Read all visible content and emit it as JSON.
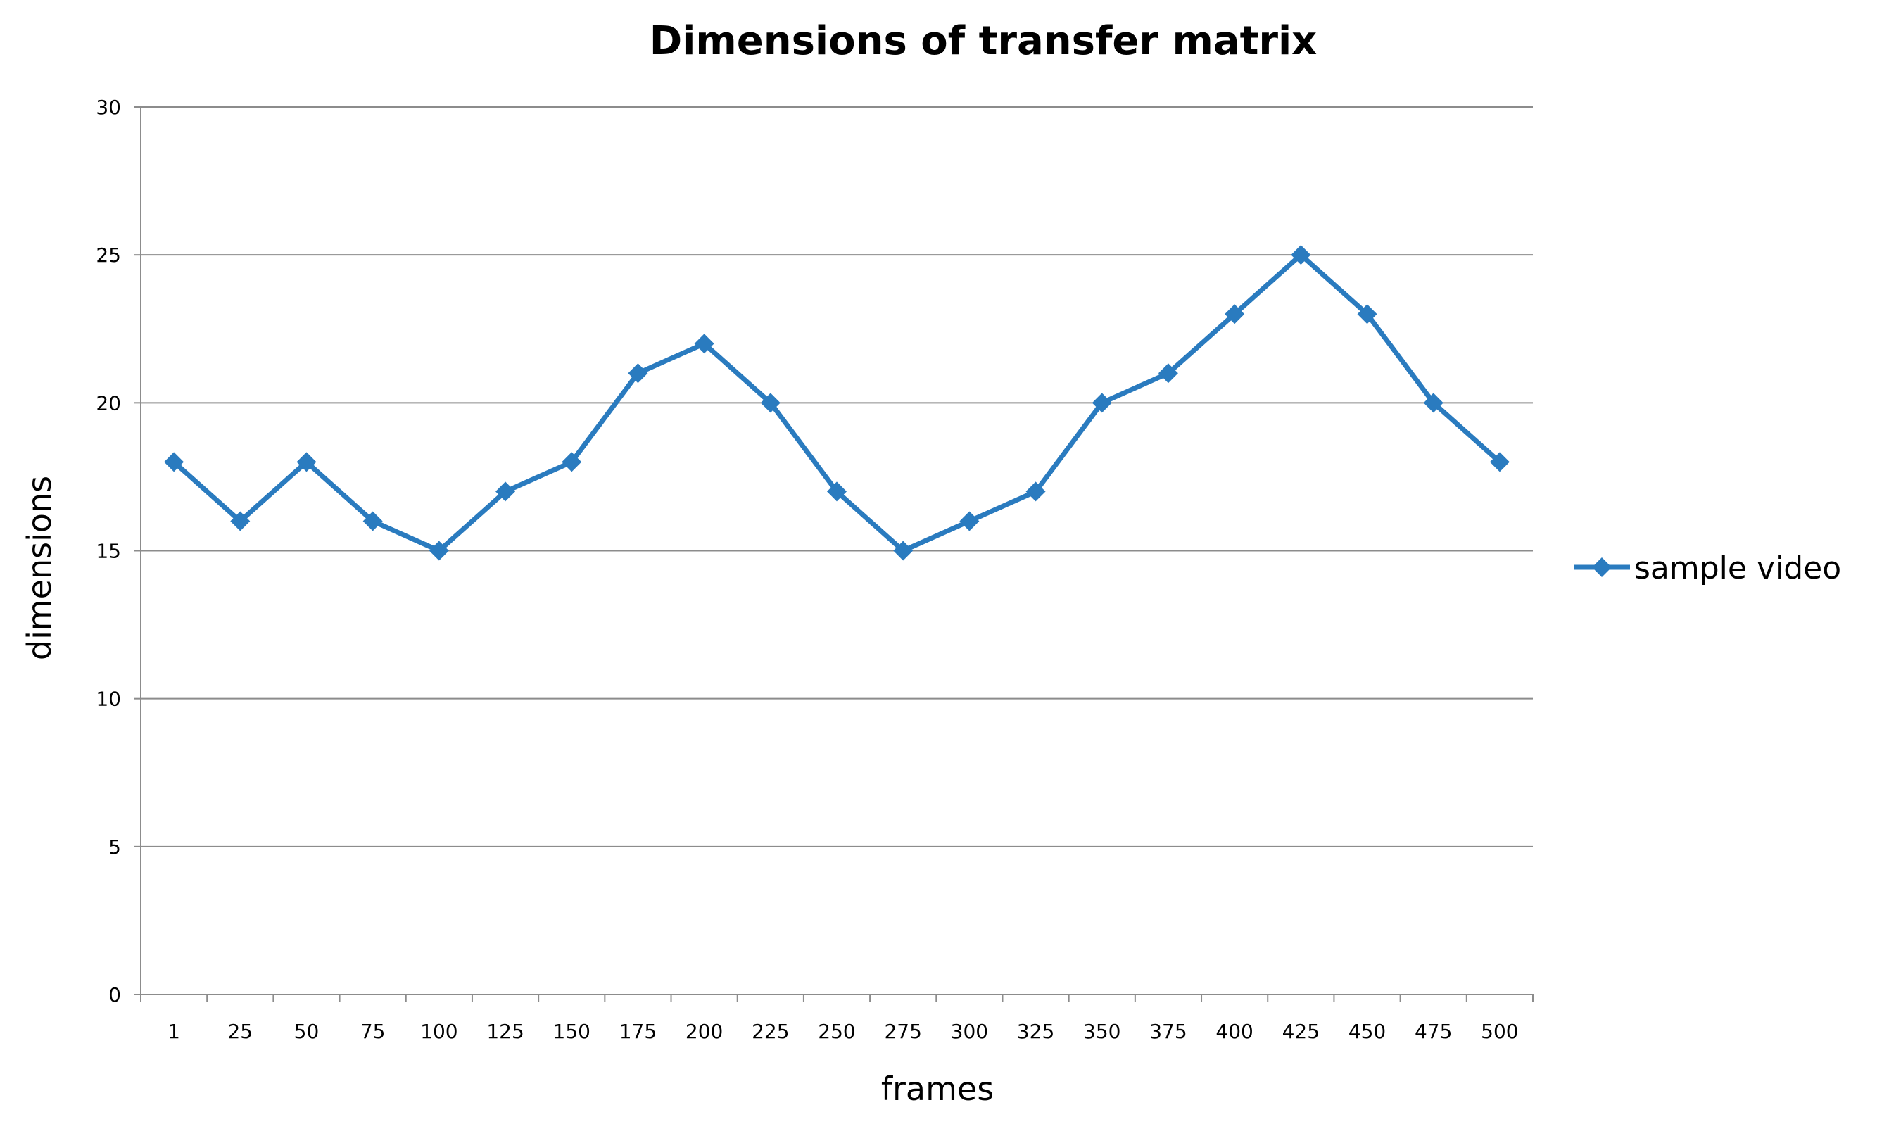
{
  "chart_data": {
    "type": "line",
    "title": "Dimensions of transfer matrix",
    "xlabel": "frames",
    "ylabel": "dimensions",
    "categories": [
      "1",
      "25",
      "50",
      "75",
      "100",
      "125",
      "150",
      "175",
      "200",
      "225",
      "250",
      "275",
      "300",
      "325",
      "350",
      "375",
      "400",
      "425",
      "450",
      "475",
      "500"
    ],
    "series": [
      {
        "name": "sample video",
        "color": "#2a7bbf",
        "marker": "diamond",
        "values": [
          18,
          16,
          18,
          16,
          15,
          17,
          18,
          21,
          22,
          20,
          17,
          15,
          16,
          17,
          20,
          21,
          23,
          25,
          23,
          20,
          18
        ]
      }
    ],
    "ylim": [
      0,
      30
    ],
    "yticks": [
      0,
      5,
      10,
      15,
      20,
      25,
      30
    ],
    "grid": "horizontal",
    "legend": "right"
  }
}
